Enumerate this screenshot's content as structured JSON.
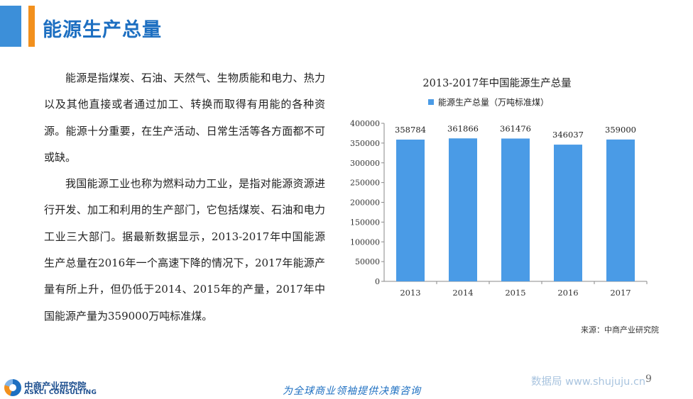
{
  "title": "能源生产总量",
  "paragraphs": [
    "能源是指煤炭、石油、天然气、生物质能和电力、热力以及其他直接或者通过加工、转换而取得有用能的各种资源。能源十分重要，在生产活动、日常生活等各方面都不可或缺。",
    "我国能源工业也称为燃料动力工业，是指对能源资源进行开发、加工和利用的生产部门，它包括煤炭、石油和电力工业三大部门。据最新数据显示，2013-2017年中国能源生产总量在2016年一个高速下降的情况下，2017年能源产量有所上升，但仍低于2014、2015年的产量，2017年中国能源产量为359000万吨标准煤。"
  ],
  "chart_data": {
    "type": "bar",
    "title": "2013-2017年中国能源生产总量",
    "categories": [
      "2013",
      "2014",
      "2015",
      "2016",
      "2017"
    ],
    "series": [
      {
        "name": "能源生产总量（万吨标准煤）",
        "values": [
          358784,
          361866,
          361476,
          346037,
          359000
        ]
      }
    ],
    "ylim": [
      0,
      400000
    ],
    "yticks": [
      0,
      50000,
      100000,
      150000,
      200000,
      250000,
      300000,
      350000,
      400000
    ],
    "legend": "top",
    "grid": false,
    "color": "#4a9be6"
  },
  "source": "来源：中商产业研究院",
  "footer": {
    "logo_cn": "中商产业研究院",
    "logo_en": "ASKCI CONSULTING",
    "slogan": "为全球商业领袖提供决策咨询",
    "watermark": "数据局 www.shujuju.cn",
    "page_number": "9"
  },
  "colors": {
    "accent_blue": "#3c8fd9",
    "accent_orange": "#f2901d",
    "title_blue": "#1d6fc1"
  }
}
